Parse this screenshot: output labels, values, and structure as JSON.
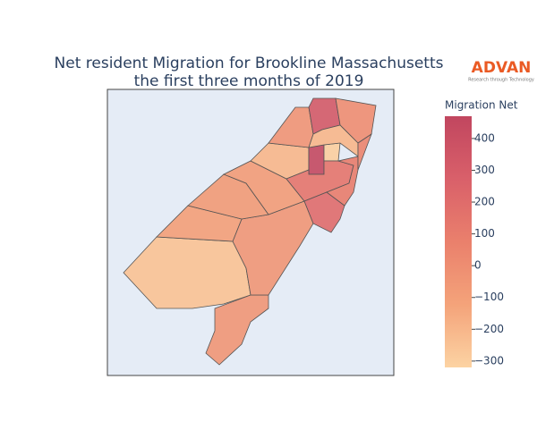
{
  "chart_data": {
    "type": "choropleth",
    "title": "Net resident Migration for Brookline Massachusetts",
    "subtitle": "the first three months of 2019",
    "logo": {
      "name": "ADVAN",
      "tagline": "Research through Technology"
    },
    "colorbar_title": "Migration Net",
    "values": [
      -250,
      -50,
      -50,
      -100,
      -70,
      -80,
      -200,
      -40,
      450,
      -300,
      150,
      200,
      100,
      320,
      0,
      -200,
      50
    ],
    "clim": [
      -320,
      470
    ],
    "cticks": [
      {
        "value": -300,
        "label": "−300"
      },
      {
        "value": -200,
        "label": "−200"
      },
      {
        "value": -100,
        "label": "−100"
      },
      0,
      100,
      200,
      300,
      400
    ],
    "colorscale": [
      "#fcd3a3",
      "#f4a37a",
      "#ea806c",
      "#d9606a",
      "#c1465f"
    ],
    "land_background": "#e5ecf6"
  }
}
